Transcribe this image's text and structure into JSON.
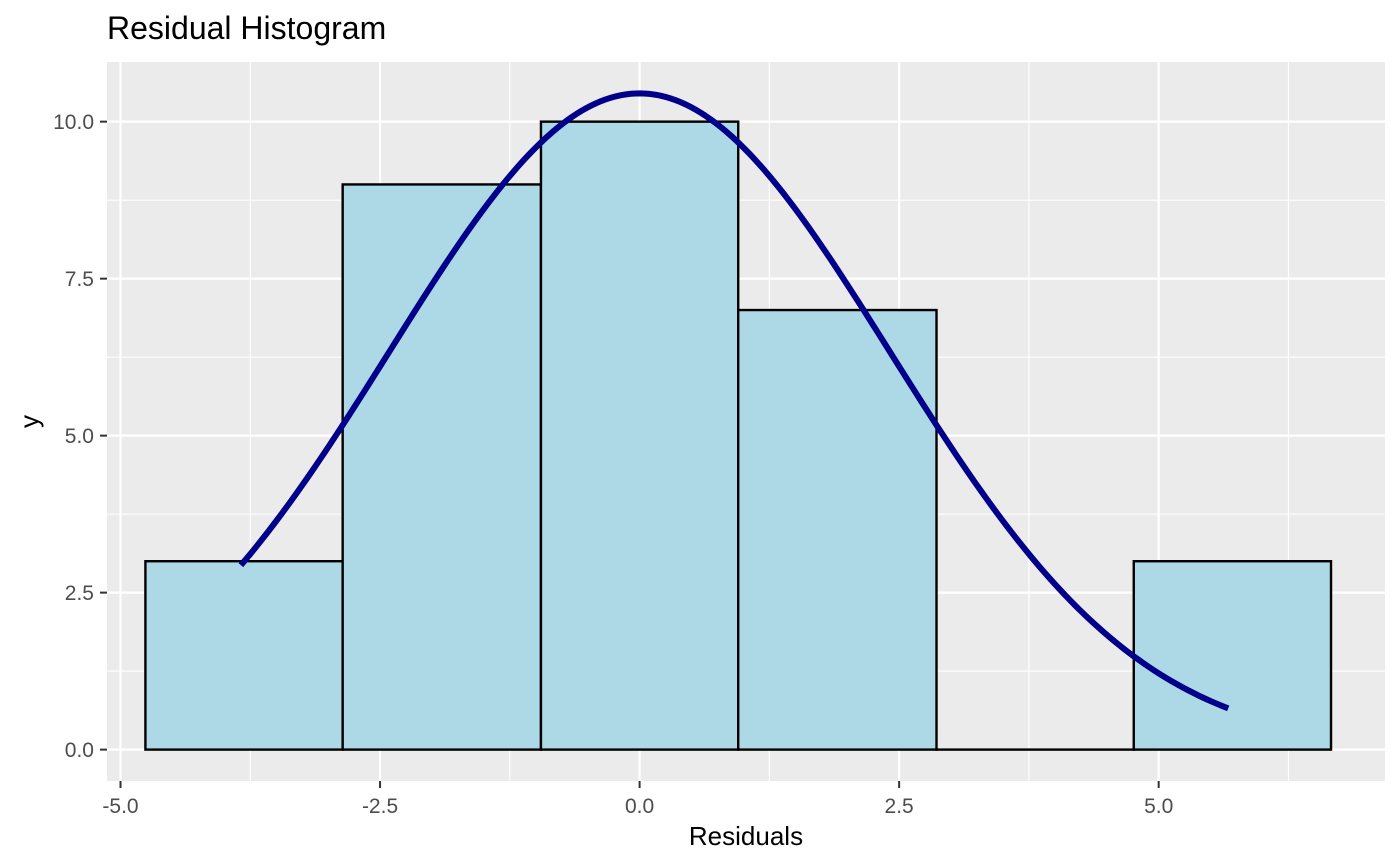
{
  "chart_data": {
    "type": "bar",
    "title": "Residual Histogram",
    "xlabel": "Residuals",
    "ylabel": "y",
    "xlim": [
      -5.13,
      7.18
    ],
    "ylim": [
      -0.5,
      10.95
    ],
    "x_ticks": [
      -5.0,
      -2.5,
      0.0,
      2.5,
      5.0
    ],
    "x_tick_labels": [
      "-5.0",
      "-2.5",
      "0.0",
      "2.5",
      "5.0"
    ],
    "y_ticks": [
      0.0,
      2.5,
      5.0,
      7.5,
      10.0
    ],
    "y_tick_labels": [
      "0.0",
      "2.5",
      "5.0",
      "7.5",
      "10.0"
    ],
    "grid": true,
    "bins": [
      {
        "x0": -4.76,
        "x1": -2.86,
        "count": 3
      },
      {
        "x0": -2.86,
        "x1": -0.95,
        "count": 9
      },
      {
        "x0": -0.95,
        "x1": 0.95,
        "count": 10
      },
      {
        "x0": 0.95,
        "x1": 2.86,
        "count": 7
      },
      {
        "x0": 2.86,
        "x1": 4.76,
        "count": 0
      },
      {
        "x0": 4.76,
        "x1": 6.66,
        "count": 3
      }
    ],
    "density_curve": {
      "type": "normal",
      "mean": 0.0,
      "sd": 2.41,
      "peak": 10.45,
      "x_range": [
        -3.84,
        5.67
      ]
    },
    "colors": {
      "panel_background": "#ebebeb",
      "grid": "#ffffff",
      "bar_fill": "#add8e6",
      "bar_stroke": "#000000",
      "curve": "#00008b",
      "tick_label": "#4d4d4d",
      "text": "#000000"
    }
  }
}
